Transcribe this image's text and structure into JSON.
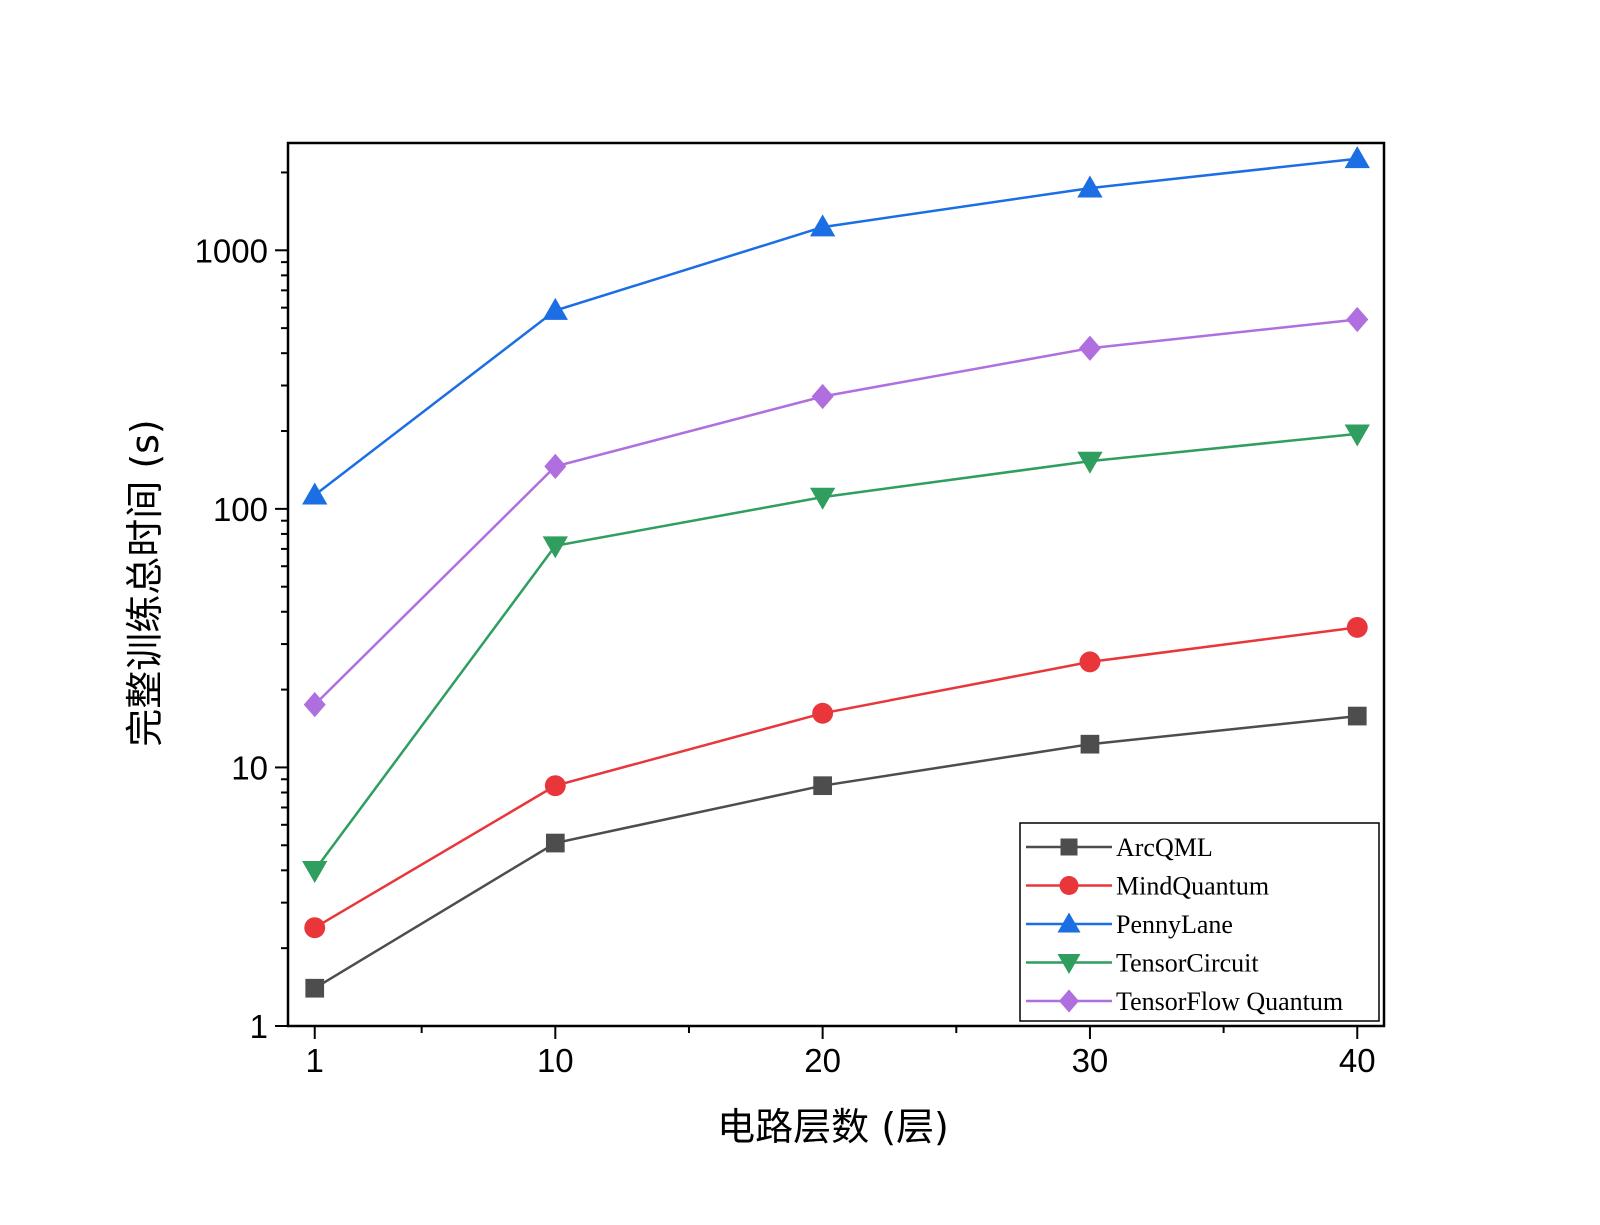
{
  "chart_data": {
    "type": "line",
    "title": "",
    "xlabel": "电路层数 (层)",
    "ylabel": "完整训练总时间 (s)",
    "x_scale": "linear",
    "y_scale": "log",
    "xlim": [
      0,
      41
    ],
    "ylim": [
      1,
      2600
    ],
    "x_ticks": [
      1,
      10,
      20,
      30,
      40
    ],
    "x_tick_labels": [
      "1",
      "10",
      "20",
      "30",
      "40"
    ],
    "y_ticks": [
      1,
      10,
      100,
      1000
    ],
    "y_tick_labels": [
      "1",
      "10",
      "100",
      "1000"
    ],
    "x": [
      1,
      10,
      20,
      30,
      40
    ],
    "legend_position": "bottom-right",
    "grid": false,
    "series": [
      {
        "name": "ArcQML",
        "color": "#4d4d4d",
        "marker": "square",
        "values": [
          1.4,
          5.1,
          8.5,
          12.3,
          15.8
        ]
      },
      {
        "name": "MindQuantum",
        "color": "#e8363b",
        "marker": "circle",
        "values": [
          2.4,
          8.5,
          16.2,
          25.6,
          34.8
        ]
      },
      {
        "name": "PennyLane",
        "color": "#1b6ee3",
        "marker": "triangle-up",
        "values": [
          113,
          585,
          1230,
          1740,
          2260
        ]
      },
      {
        "name": "TensorCircuit",
        "color": "#2f9e5f",
        "marker": "triangle-down",
        "values": [
          4.0,
          72,
          111,
          153,
          195
        ]
      },
      {
        "name": "TensorFlow Quantum",
        "color": "#b06fde",
        "marker": "diamond",
        "values": [
          17.5,
          146,
          272,
          418,
          540
        ]
      }
    ]
  }
}
